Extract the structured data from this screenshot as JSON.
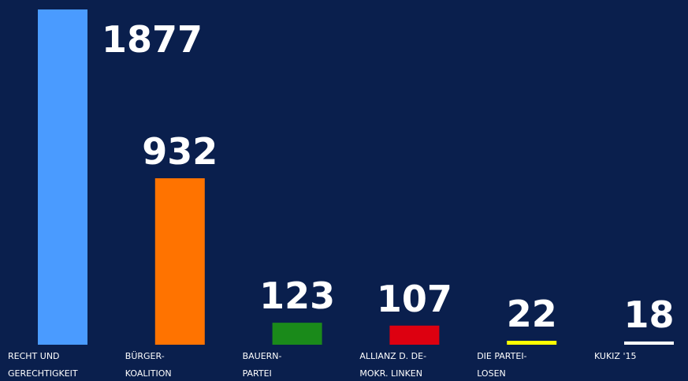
{
  "chart_data": {
    "type": "bar",
    "categories": [
      "RECHT UND\nGERECHTIGKEIT",
      "BÜRGER-\nKOALITION",
      "BAUERN-\nPARTEI",
      "ALLIANZ D. DE-\nMOKR. LINKEN",
      "DIE PARTEI-\nLOSEN",
      "KUKIZ '15"
    ],
    "values": [
      1877,
      932,
      123,
      107,
      22,
      18
    ],
    "colors": [
      "#4a9bff",
      "#ff7300",
      "#1a8a1a",
      "#dd0010",
      "#ffff00",
      "#ffffff"
    ]
  }
}
